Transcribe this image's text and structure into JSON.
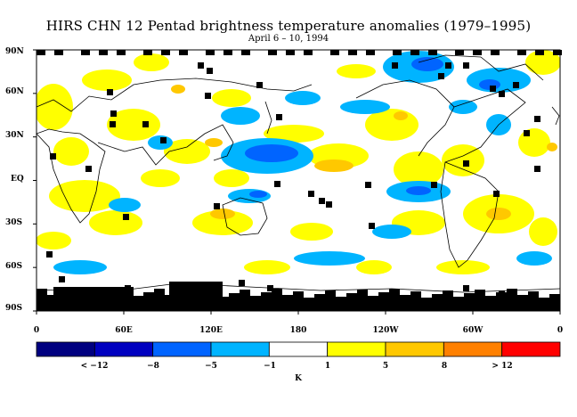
{
  "title": "HIRS CHN 12 Pentad brightness temperature anomalies (1979–1995)",
  "subtitle": "April 6 – 10, 1994",
  "lat_labels": [
    "90N",
    "60N",
    "30N",
    "EQ",
    "30S",
    "60S",
    "90S"
  ],
  "lon_labels": [
    "0",
    "60E",
    "120E",
    "180",
    "120W",
    "60W",
    "0"
  ],
  "colorbar": {
    "colors": [
      "#000080",
      "#0000c0",
      "#0064ff",
      "#00b4ff",
      "#ffffff",
      "#ffff00",
      "#ffc800",
      "#ff8000",
      "#ff0000"
    ],
    "labels": [
      "< −12",
      "−8",
      "−5",
      "−1",
      "1",
      "5",
      "8",
      "> 12"
    ],
    "unit": "K"
  },
  "colors": {
    "missing": "#000000",
    "coast": "#000000"
  }
}
